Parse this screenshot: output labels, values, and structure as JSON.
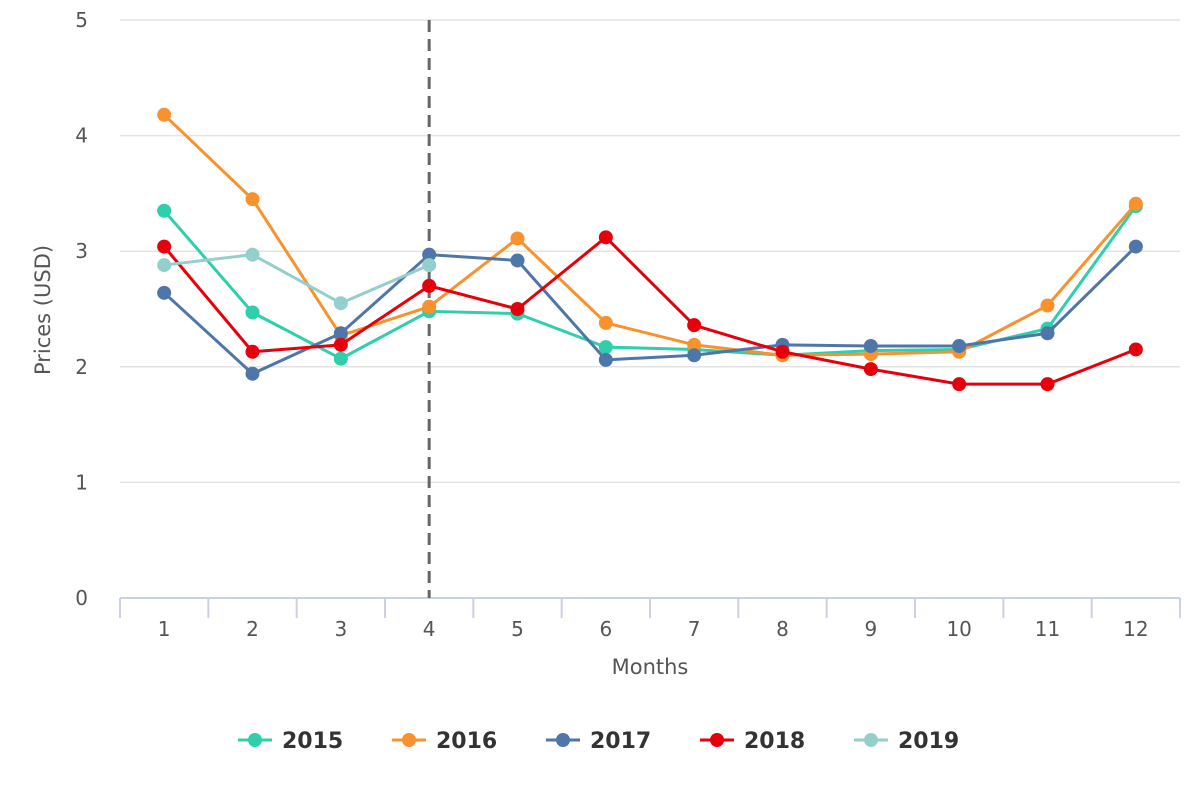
{
  "chart_data": {
    "type": "line",
    "title": "",
    "xlabel": "Months",
    "ylabel": "Prices (USD)",
    "categories": [
      "1",
      "2",
      "3",
      "4",
      "5",
      "6",
      "7",
      "8",
      "9",
      "10",
      "11",
      "12"
    ],
    "ylim": [
      0,
      5
    ],
    "yticks": [
      "0",
      "1",
      "2",
      "3",
      "4",
      "5"
    ],
    "grid": "horizontal",
    "legend_position": "bottom",
    "vertical_marker_at": "4",
    "series": [
      {
        "name": "2015",
        "color": "#2ecfaa",
        "values": [
          3.35,
          2.47,
          2.07,
          2.48,
          2.46,
          2.17,
          2.15,
          2.1,
          2.14,
          2.15,
          2.33,
          3.39
        ]
      },
      {
        "name": "2016",
        "color": "#f7922e",
        "values": [
          4.18,
          3.45,
          2.27,
          2.52,
          3.11,
          2.38,
          2.19,
          2.1,
          2.11,
          2.13,
          2.53,
          3.41
        ]
      },
      {
        "name": "2017",
        "color": "#4e76a8",
        "values": [
          2.64,
          1.94,
          2.29,
          2.97,
          2.92,
          2.06,
          2.1,
          2.19,
          2.18,
          2.18,
          2.29,
          3.04
        ]
      },
      {
        "name": "2018",
        "color": "#e6000c",
        "values": [
          3.04,
          2.13,
          2.19,
          2.7,
          2.5,
          3.12,
          2.36,
          2.13,
          1.98,
          1.85,
          1.85,
          2.15
        ]
      },
      {
        "name": "2019",
        "color": "#95cfcb",
        "values": [
          2.88,
          2.97,
          2.55,
          2.88,
          null,
          null,
          null,
          null,
          null,
          null,
          null,
          null
        ]
      }
    ]
  }
}
